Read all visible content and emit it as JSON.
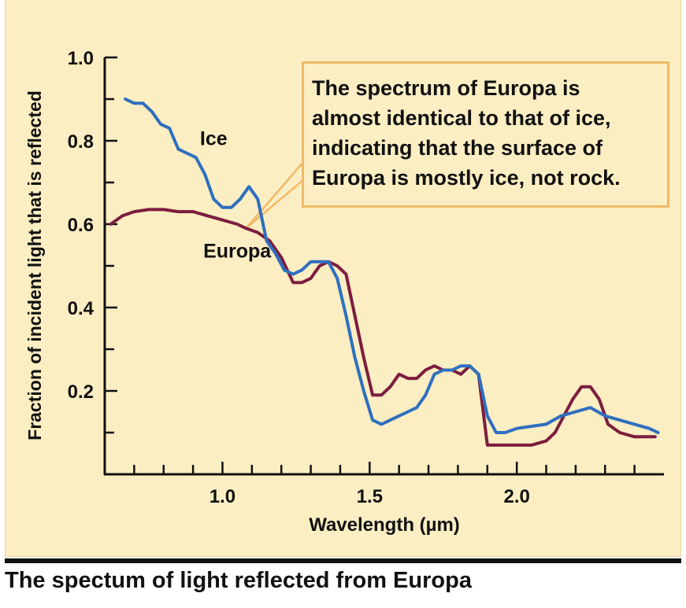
{
  "caption": "The spectum of light reflected from Europa",
  "chart_data": {
    "type": "line",
    "title": "The spectum of light reflected from Europa",
    "xlabel": "Wavelength (µm)",
    "ylabel": "Fraction of incident light that is reflected",
    "xlim": [
      0.6,
      2.5
    ],
    "ylim": [
      0.0,
      1.0
    ],
    "x_ticks": [
      1.0,
      1.5,
      2.0
    ],
    "x_tick_labels": [
      "1.0",
      "1.5",
      "2.0"
    ],
    "y_ticks": [
      0.2,
      0.4,
      0.6,
      0.8,
      1.0
    ],
    "y_tick_labels": [
      "0.2",
      "0.4",
      "0.6",
      "0.8",
      "1.0"
    ],
    "annotation": "The spectrum of Europa is\nalmost identical to that of ice,\nindicating that the surface of\nEuropa is mostly ice, not rock.",
    "series": [
      {
        "name": "Ice",
        "color": "#2f6fbf",
        "x": [
          0.67,
          0.7,
          0.73,
          0.76,
          0.79,
          0.82,
          0.85,
          0.88,
          0.91,
          0.94,
          0.97,
          1.0,
          1.03,
          1.06,
          1.09,
          1.12,
          1.15,
          1.18,
          1.21,
          1.24,
          1.27,
          1.3,
          1.33,
          1.36,
          1.39,
          1.42,
          1.45,
          1.48,
          1.51,
          1.54,
          1.57,
          1.6,
          1.63,
          1.66,
          1.69,
          1.72,
          1.75,
          1.78,
          1.81,
          1.84,
          1.87,
          1.9,
          1.93,
          1.96,
          2.0,
          2.05,
          2.1,
          2.15,
          2.2,
          2.25,
          2.3,
          2.35,
          2.4,
          2.45,
          2.48
        ],
        "values": [
          0.9,
          0.89,
          0.89,
          0.87,
          0.84,
          0.83,
          0.78,
          0.77,
          0.76,
          0.72,
          0.66,
          0.64,
          0.64,
          0.66,
          0.69,
          0.66,
          0.56,
          0.53,
          0.49,
          0.48,
          0.49,
          0.51,
          0.51,
          0.51,
          0.47,
          0.38,
          0.28,
          0.2,
          0.13,
          0.12,
          0.13,
          0.14,
          0.15,
          0.16,
          0.19,
          0.24,
          0.25,
          0.25,
          0.26,
          0.26,
          0.24,
          0.14,
          0.1,
          0.1,
          0.11,
          0.115,
          0.12,
          0.14,
          0.15,
          0.16,
          0.14,
          0.13,
          0.12,
          0.11,
          0.1
        ]
      },
      {
        "name": "Europa",
        "color": "#7d1d3f",
        "x": [
          0.62,
          0.66,
          0.7,
          0.75,
          0.8,
          0.85,
          0.9,
          0.95,
          1.0,
          1.05,
          1.08,
          1.12,
          1.16,
          1.2,
          1.24,
          1.27,
          1.3,
          1.33,
          1.36,
          1.39,
          1.42,
          1.45,
          1.48,
          1.51,
          1.54,
          1.57,
          1.6,
          1.63,
          1.66,
          1.69,
          1.72,
          1.75,
          1.78,
          1.81,
          1.84,
          1.87,
          1.9,
          1.93,
          1.96,
          2.0,
          2.05,
          2.1,
          2.13,
          2.16,
          2.19,
          2.22,
          2.25,
          2.28,
          2.31,
          2.35,
          2.4,
          2.45,
          2.47
        ],
        "values": [
          0.6,
          0.62,
          0.63,
          0.635,
          0.635,
          0.63,
          0.63,
          0.62,
          0.61,
          0.6,
          0.59,
          0.58,
          0.56,
          0.52,
          0.46,
          0.46,
          0.47,
          0.5,
          0.51,
          0.5,
          0.48,
          0.38,
          0.28,
          0.19,
          0.19,
          0.21,
          0.24,
          0.23,
          0.23,
          0.25,
          0.26,
          0.25,
          0.25,
          0.24,
          0.26,
          0.24,
          0.07,
          0.07,
          0.07,
          0.07,
          0.07,
          0.08,
          0.1,
          0.14,
          0.18,
          0.21,
          0.21,
          0.18,
          0.12,
          0.1,
          0.09,
          0.09,
          0.09
        ]
      }
    ]
  }
}
